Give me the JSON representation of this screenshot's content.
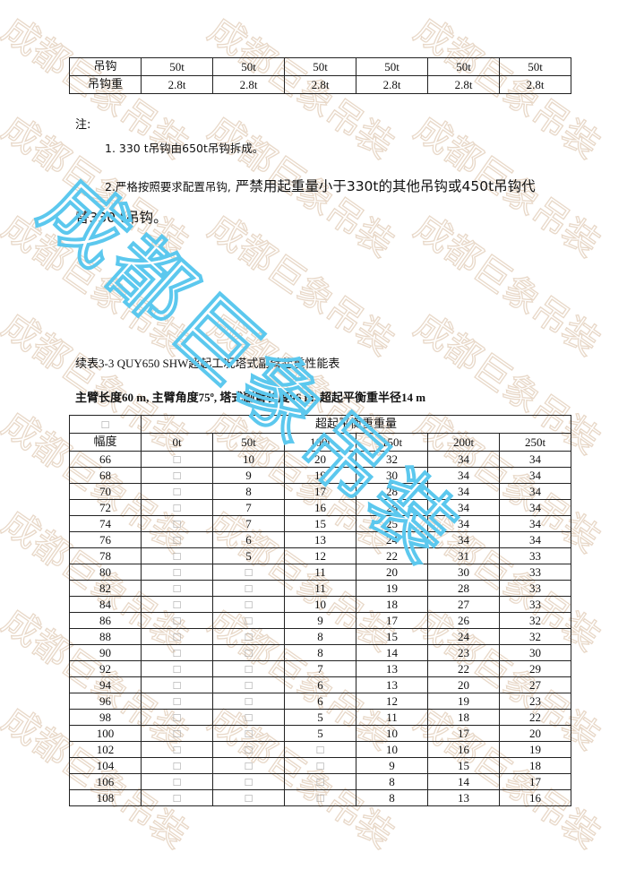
{
  "watermark": "成都巨象吊装",
  "hook_table": {
    "rows": [
      {
        "label": "吊钩",
        "values": [
          "50t",
          "50t",
          "50t",
          "50t",
          "50t",
          "50t"
        ]
      },
      {
        "label": "吊钩重",
        "values": [
          "2.8t",
          "2.8t",
          "2.8t",
          "2.8t",
          "2.8t",
          "2.8t"
        ]
      }
    ]
  },
  "notes": {
    "heading": "注:",
    "item1": "1. 330 t吊钩由650t吊钩拆成。",
    "item2_a": "2.严格按照要求配置吊钩,",
    "item2_b": " 严禁用起重量小于330t的其他吊钩或450t吊钩代",
    "item2_c": "替330 t吊钩。"
  },
  "table_caption": "续表3-3 QUY650 SHW超起工况塔式副臂起重性能表",
  "table_conditions": "主臂长度60 m, 主臂角度75º, 塔式副臂长度96 m, 超起平衡重半径14 m",
  "load_table": {
    "corner": "□",
    "group_header": "超起平衡重重量",
    "radius_header": "幅度",
    "columns": [
      "0t",
      "50t",
      "100t",
      "150t",
      "200t",
      "250t"
    ],
    "rows": [
      [
        "66",
        "□",
        "10",
        "20",
        "32",
        "34",
        "34"
      ],
      [
        "68",
        "□",
        "9",
        "19",
        "30",
        "34",
        "34"
      ],
      [
        "70",
        "□",
        "8",
        "17",
        "28",
        "34",
        "34"
      ],
      [
        "72",
        "□",
        "7",
        "16",
        "26",
        "34",
        "34"
      ],
      [
        "74",
        "□",
        "7",
        "15",
        "25",
        "34",
        "34"
      ],
      [
        "76",
        "□",
        "6",
        "13",
        "24",
        "34",
        "34"
      ],
      [
        "78",
        "□",
        "5",
        "12",
        "22",
        "31",
        "33"
      ],
      [
        "80",
        "□",
        "□",
        "11",
        "20",
        "30",
        "33"
      ],
      [
        "82",
        "□",
        "□",
        "11",
        "19",
        "28",
        "33"
      ],
      [
        "84",
        "□",
        "□",
        "10",
        "18",
        "27",
        "33"
      ],
      [
        "86",
        "□",
        "□",
        "9",
        "17",
        "26",
        "32"
      ],
      [
        "88",
        "□",
        "□",
        "8",
        "15",
        "24",
        "32"
      ],
      [
        "90",
        "□",
        "□",
        "8",
        "14",
        "23",
        "30"
      ],
      [
        "92",
        "□",
        "□",
        "7",
        "13",
        "22",
        "29"
      ],
      [
        "94",
        "□",
        "□",
        "6",
        "13",
        "20",
        "27"
      ],
      [
        "96",
        "□",
        "□",
        "6",
        "12",
        "19",
        "23"
      ],
      [
        "98",
        "□",
        "□",
        "5",
        "11",
        "18",
        "22"
      ],
      [
        "100",
        "□",
        "□",
        "5",
        "10",
        "17",
        "20"
      ],
      [
        "102",
        "□",
        "□",
        "□",
        "10",
        "16",
        "19"
      ],
      [
        "104",
        "□",
        "□",
        "□",
        "9",
        "15",
        "18"
      ],
      [
        "106",
        "□",
        "□",
        "□",
        "8",
        "14",
        "17"
      ],
      [
        "108",
        "□",
        "□",
        "□",
        "8",
        "13",
        "16"
      ]
    ]
  },
  "colors": {
    "watermark_tile": "#e8d8c8",
    "watermark_big": "#5cc8ee"
  }
}
